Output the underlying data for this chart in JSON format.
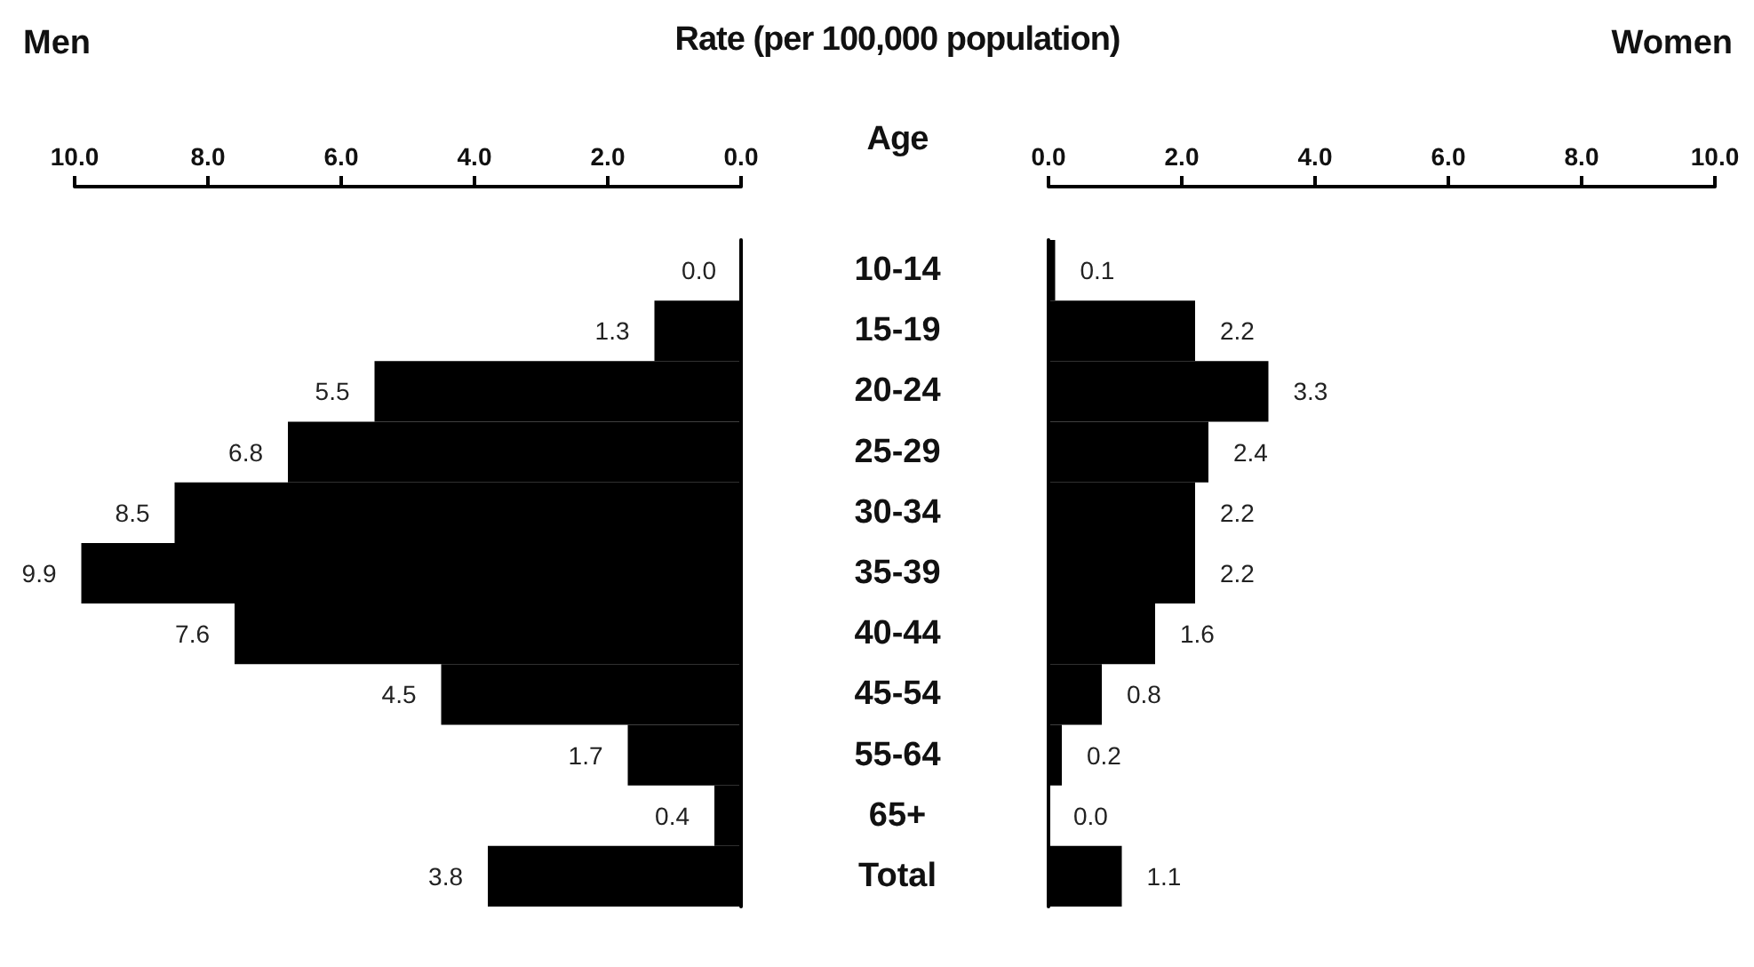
{
  "chart_data": [
    {
      "type": "bar",
      "orientation": "horizontal",
      "title": "Men",
      "xlabel": "Rate (per 100,000 population)",
      "ylabel": "Age",
      "color": "#000000",
      "categories": [
        "10-14",
        "15-19",
        "20-24",
        "25-29",
        "30-34",
        "35-39",
        "40-44",
        "45-54",
        "55-64",
        "65+",
        "Total"
      ],
      "values": [
        0.0,
        1.3,
        5.5,
        6.8,
        8.5,
        9.9,
        7.6,
        4.5,
        1.7,
        0.4,
        3.8
      ],
      "value_labels": [
        "0.0",
        "1.3",
        "5.5",
        "6.8",
        "8.5",
        "9.9",
        "7.6",
        "4.5",
        "1.7",
        "0.4",
        "3.8"
      ],
      "xlim": [
        10,
        0
      ],
      "xticks": [
        {
          "value": 10,
          "label": "10.0"
        },
        {
          "value": 8,
          "label": "8.0"
        },
        {
          "value": 6,
          "label": "6.0"
        },
        {
          "value": 4,
          "label": "4.0"
        },
        {
          "value": 2,
          "label": "2.0"
        },
        {
          "value": 0,
          "label": "0.0"
        }
      ],
      "grid": false
    },
    {
      "type": "bar",
      "orientation": "horizontal",
      "title": "Women",
      "color": "#000000",
      "tick_labels": "x",
      "categories": [
        null,
        null,
        null,
        null,
        null,
        null,
        null,
        null,
        null,
        null,
        null
      ],
      "values": [
        0.1,
        2.2,
        3.3,
        2.4,
        2.2,
        2.2,
        1.6,
        0.8,
        0.2,
        0.0,
        1.1
      ],
      "value_labels": [
        "0.1",
        "2.2",
        "3.3",
        "2.4",
        "2.2",
        "2.2",
        "1.6",
        "0.8",
        "0.2",
        "0.0",
        "1.1"
      ],
      "xlim": [
        0,
        10
      ],
      "xticks": [
        {
          "value": 0,
          "label": "0.0"
        },
        {
          "value": 2,
          "label": "2.0"
        },
        {
          "value": 4,
          "label": "4.0"
        },
        {
          "value": 6,
          "label": "6.0"
        },
        {
          "value": 8,
          "label": "8.0"
        },
        {
          "value": 10,
          "label": "10.0"
        }
      ],
      "grid": false
    }
  ]
}
